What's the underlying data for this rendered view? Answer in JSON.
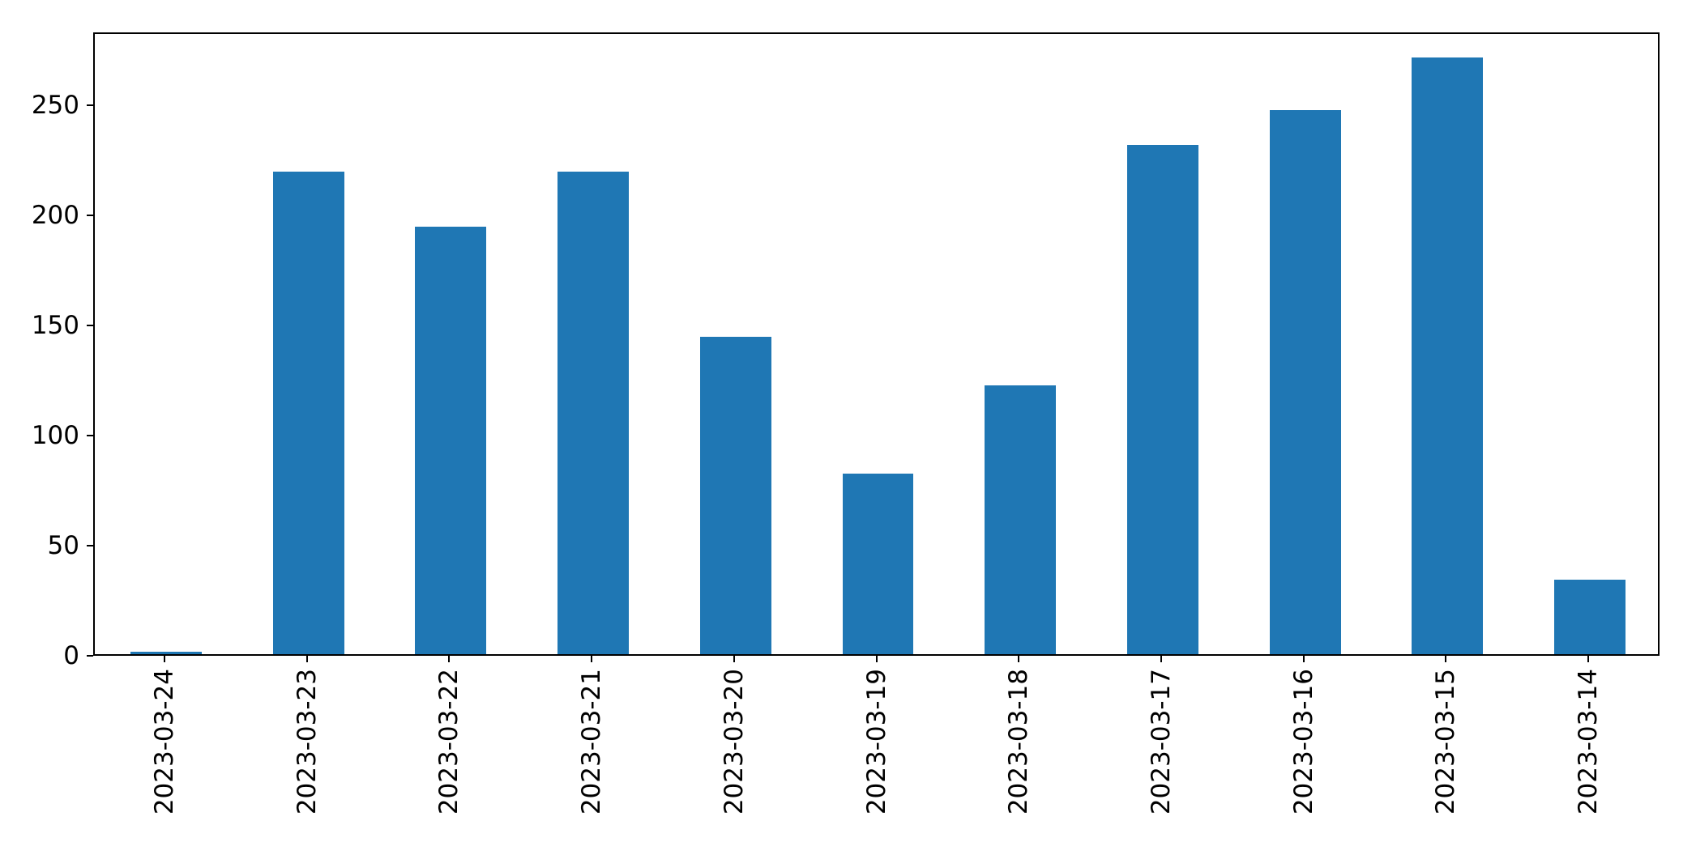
{
  "chart_data": {
    "type": "bar",
    "categories": [
      "2023-03-24",
      "2023-03-23",
      "2023-03-22",
      "2023-03-21",
      "2023-03-20",
      "2023-03-19",
      "2023-03-18",
      "2023-03-17",
      "2023-03-16",
      "2023-03-15",
      "2023-03-14"
    ],
    "values": [
      1,
      219,
      194,
      219,
      144,
      82,
      122,
      231,
      247,
      271,
      34
    ],
    "title": "",
    "xlabel": "",
    "ylabel": "",
    "yticks": [
      0,
      50,
      100,
      150,
      200,
      250
    ],
    "ylim": [
      0,
      283
    ],
    "bar_color": "#1f77b4",
    "bar_width_fraction": 0.5,
    "grid": false,
    "legend": null,
    "tick_label_rotation_deg": 90
  }
}
